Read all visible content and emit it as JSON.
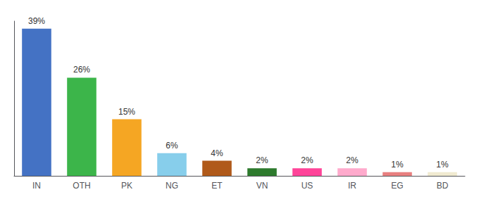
{
  "chart_data": {
    "type": "bar",
    "categories": [
      "IN",
      "OTH",
      "PK",
      "NG",
      "ET",
      "VN",
      "US",
      "IR",
      "EG",
      "BD"
    ],
    "values": [
      39,
      26,
      15,
      6,
      4,
      2,
      2,
      2,
      1,
      1
    ],
    "value_labels": [
      "39%",
      "26%",
      "15%",
      "6%",
      "4%",
      "2%",
      "2%",
      "2%",
      "1%",
      "1%"
    ],
    "colors": [
      "#4472c4",
      "#3cb54a",
      "#f5a623",
      "#87ceeb",
      "#b05a1a",
      "#2d7a2d",
      "#ff4499",
      "#ffaacc",
      "#e88080",
      "#f0ead0"
    ],
    "ylim": [
      0,
      41
    ],
    "grid": false,
    "data_labels": true,
    "tick_labels": "x"
  }
}
